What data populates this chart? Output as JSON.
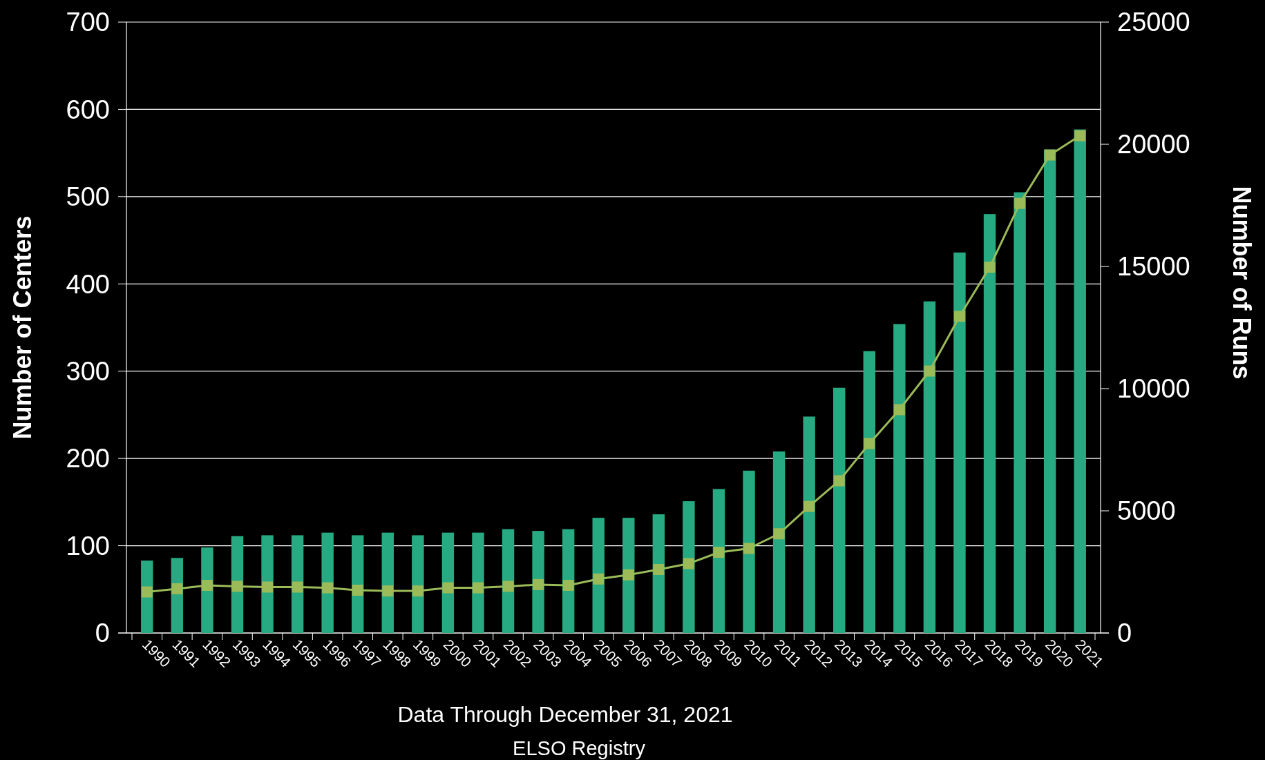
{
  "chart_data": {
    "type": "bar",
    "ylabel": "Number of Centers",
    "y2label": "Number of Runs",
    "categories": [
      "1990",
      "1991",
      "1992",
      "1993",
      "1994",
      "1995",
      "1996",
      "1997",
      "1998",
      "1999",
      "2000",
      "2001",
      "2002",
      "2003",
      "2004",
      "2005",
      "2006",
      "2007",
      "2008",
      "2009",
      "2010",
      "2011",
      "2012",
      "2013",
      "2014",
      "2015",
      "2016",
      "2017",
      "2018",
      "2019",
      "2020",
      "2021"
    ],
    "series": [
      {
        "color": "#27a982",
        "values": [
          83,
          86,
          98,
          111,
          112,
          112,
          115,
          112,
          115,
          112,
          115,
          115,
          119,
          117,
          119,
          132,
          132,
          136,
          151,
          165,
          186,
          208,
          248,
          281,
          323,
          354,
          380,
          436,
          480,
          505,
          554,
          577
        ]
      },
      {
        "type": "line",
        "axis": "y2",
        "color": "#9bbb59",
        "marker": "square",
        "values": [
          1680,
          1810,
          1950,
          1910,
          1880,
          1880,
          1850,
          1750,
          1720,
          1720,
          1850,
          1850,
          1910,
          1980,
          1950,
          2210,
          2380,
          2600,
          2840,
          3300,
          3460,
          4060,
          5180,
          6230,
          7750,
          9140,
          10720,
          12960,
          14970,
          17580,
          19560,
          20350
        ]
      }
    ],
    "ylim": [
      0,
      700
    ],
    "yticks": [
      0,
      100,
      200,
      300,
      400,
      500,
      600,
      700
    ],
    "y2lim": [
      0,
      25000
    ],
    "y2ticks": [
      0,
      5000,
      10000,
      15000,
      20000,
      25000
    ],
    "grid": "y",
    "annotations": [
      "Data Through December 31, 2021",
      "ELSO Registry"
    ]
  }
}
